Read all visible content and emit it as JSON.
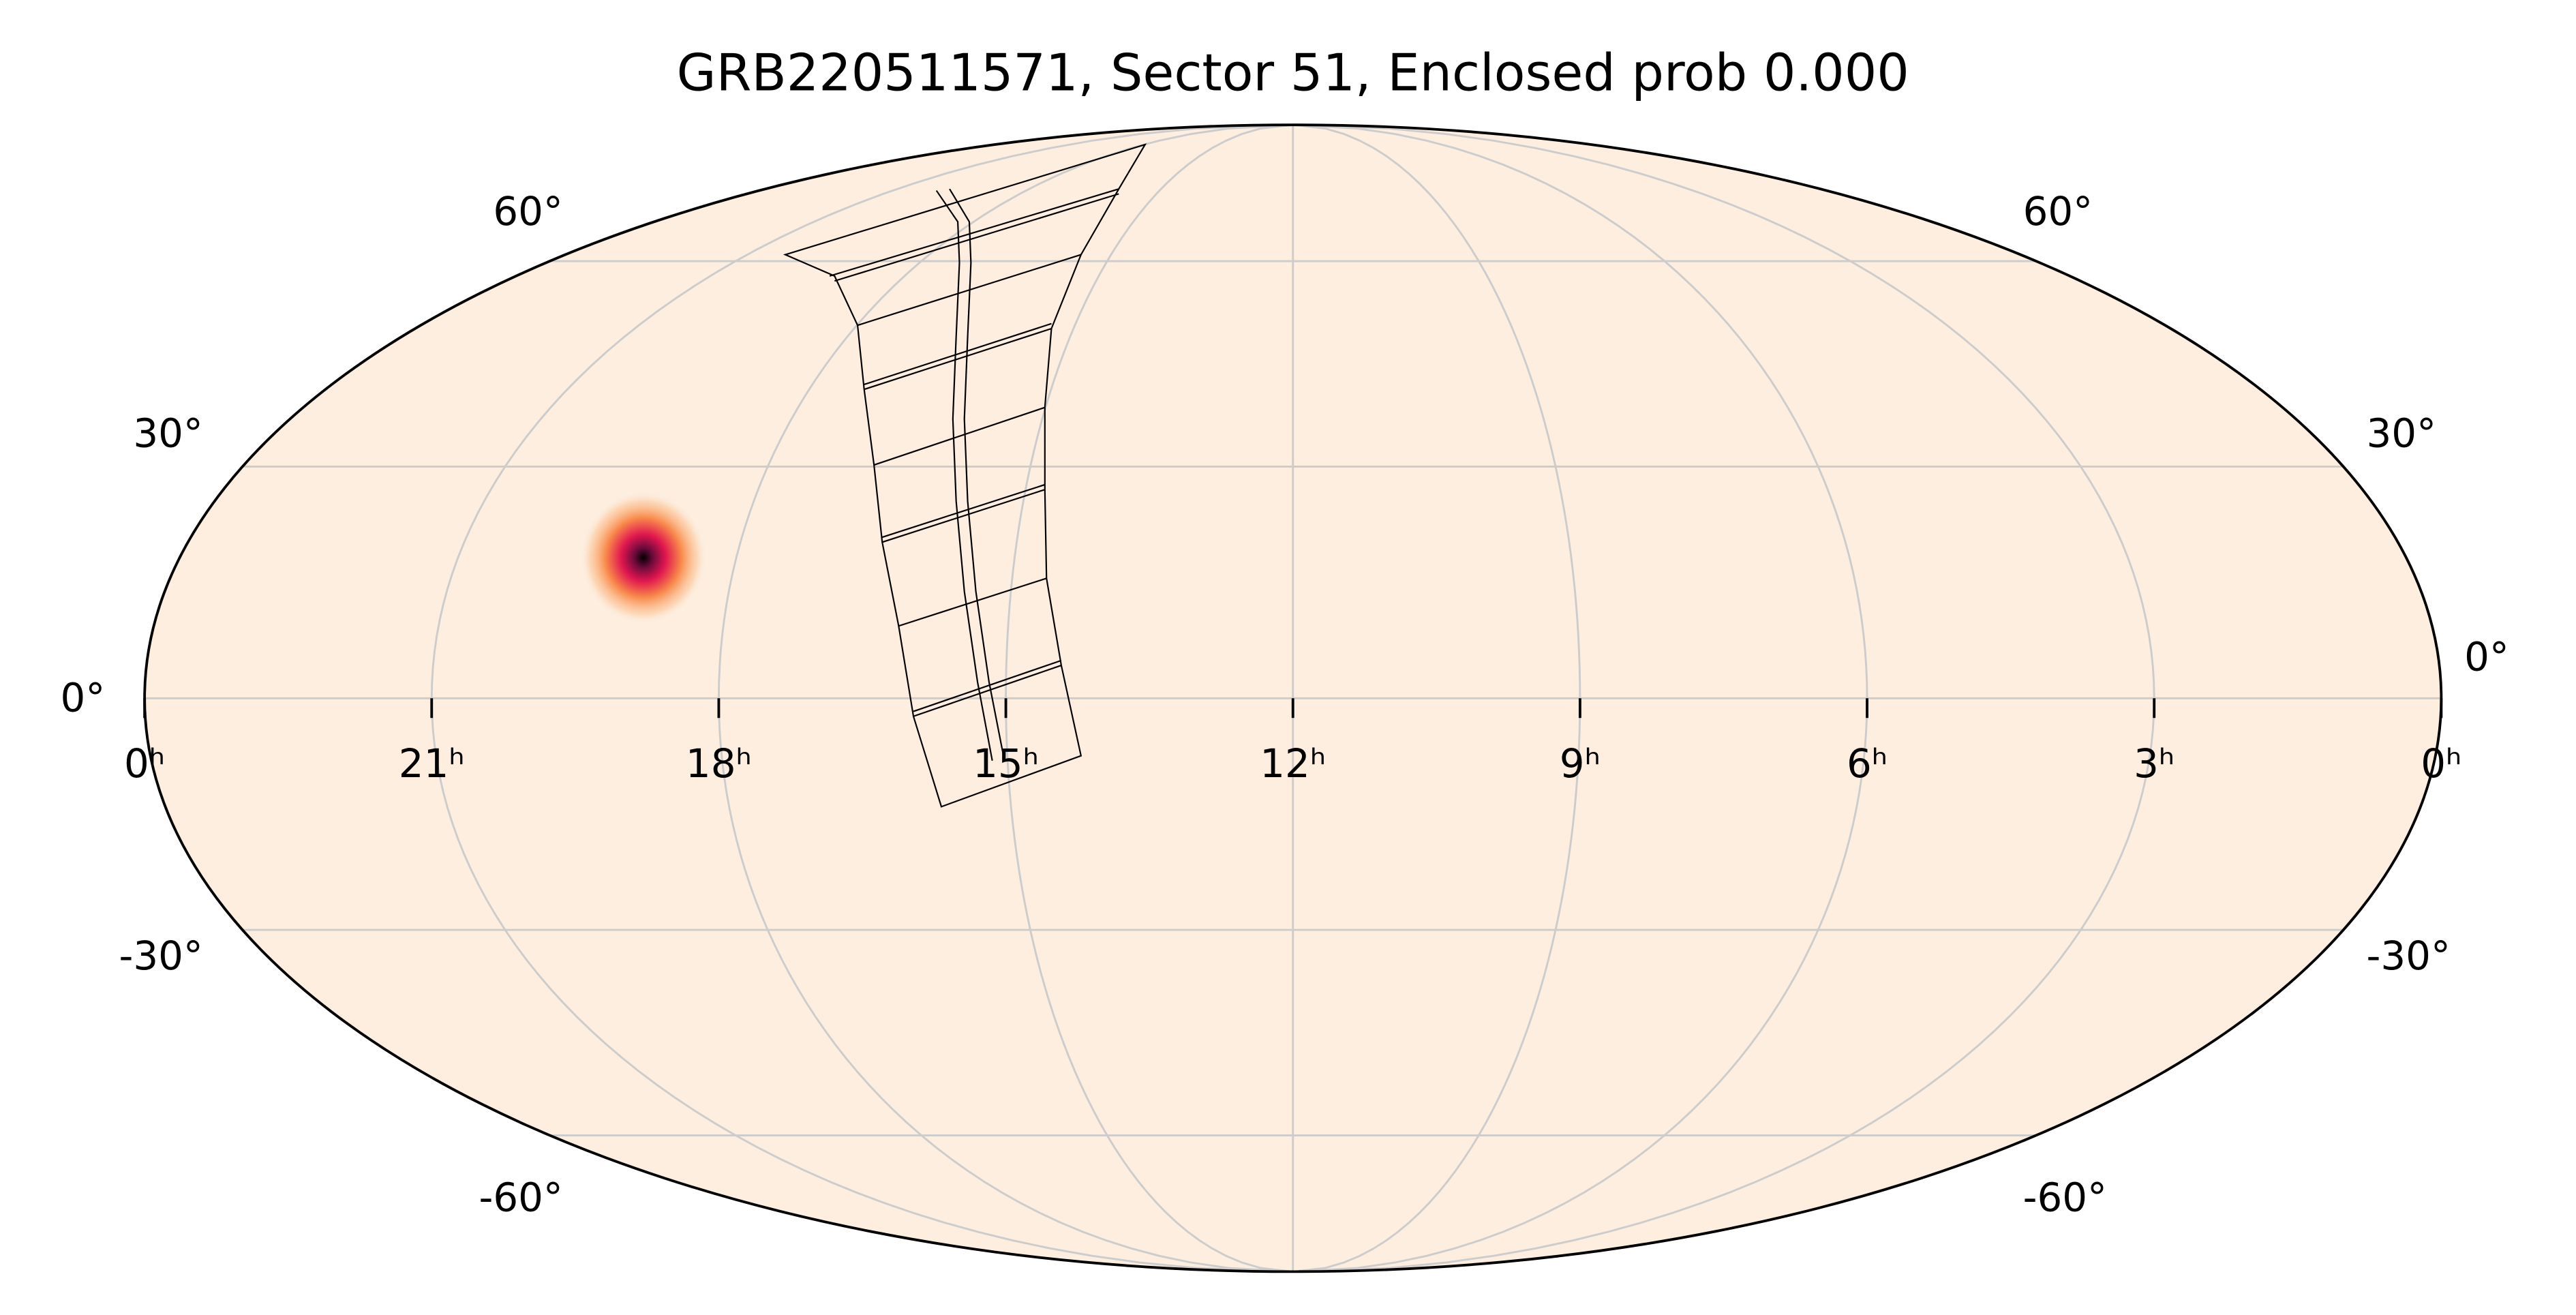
{
  "chart_data": {
    "type": "mollweide",
    "title": "GRB220511571, Sector 51, Enclosed prob 0.000",
    "ra_ticks": [
      {
        "value": 24,
        "label": "0ʰ"
      },
      {
        "value": 21,
        "label": "21ʰ"
      },
      {
        "value": 18,
        "label": "18ʰ"
      },
      {
        "value": 15,
        "label": "15ʰ"
      },
      {
        "value": 12,
        "label": "12ʰ"
      },
      {
        "value": 9,
        "label": "9ʰ"
      },
      {
        "value": 6,
        "label": "6ʰ"
      },
      {
        "value": 3,
        "label": "3ʰ"
      },
      {
        "value": 0,
        "label": "0ʰ"
      }
    ],
    "dec_ticks": [
      {
        "value": 60,
        "label": "60°"
      },
      {
        "value": 30,
        "label": "30°"
      },
      {
        "value": 0,
        "label": "0°"
      },
      {
        "value": -30,
        "label": "-30°"
      },
      {
        "value": -60,
        "label": "-60°"
      }
    ],
    "grid": true,
    "background_color": "#fdeee0",
    "localization": {
      "ra": 19.0,
      "dec": 18,
      "sigma": 3.5
    }
  }
}
